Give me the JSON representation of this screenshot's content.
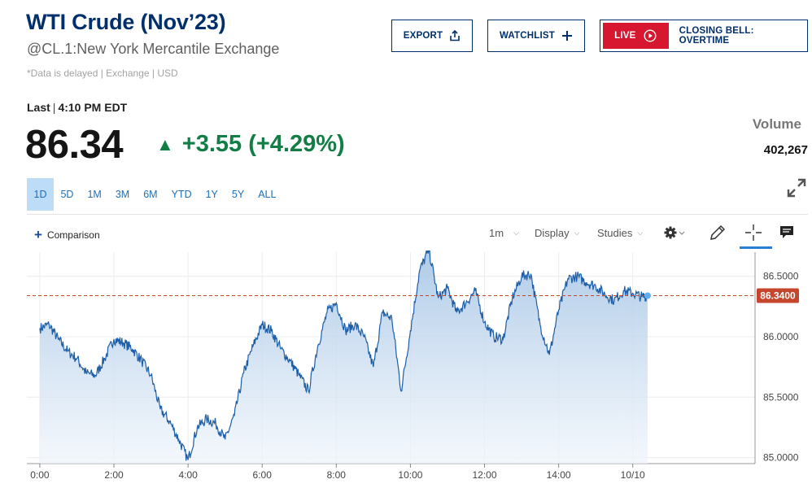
{
  "header": {
    "title": "WTI Crude (Nov’23)",
    "subtitle": "@CL.1:New York Mercantile Exchange",
    "delay_note": "*Data is delayed | Exchange | USD"
  },
  "buttons": {
    "export": "EXPORT",
    "watchlist": "WATCHLIST",
    "live": "LIVE",
    "live_program": "CLOSING BELL: OVERTIME"
  },
  "quote": {
    "last_label": "Last",
    "last_time": "4:10 PM EDT",
    "price": "86.34",
    "change": "+3.55 (+4.29%)",
    "direction": "up",
    "volume_label": "Volume",
    "volume": "402,267"
  },
  "ranges": [
    "1D",
    "5D",
    "1M",
    "3M",
    "6M",
    "YTD",
    "1Y",
    "5Y",
    "ALL"
  ],
  "active_range": "1D",
  "toolbar": {
    "comparison": "Comparison",
    "interval": "1m",
    "display": "Display",
    "studies": "Studies"
  },
  "colors": {
    "brand_navy": "#002f6c",
    "positive": "#137d46",
    "line": "#1c5ea8",
    "last_price_marker": "#c5452d",
    "live_red": "#d6172f"
  },
  "chart_data": {
    "type": "area",
    "xlabel": "",
    "ylabel": "",
    "x_ticks": [
      "0:00",
      "2:00",
      "4:00",
      "6:00",
      "8:00",
      "10:00",
      "12:00",
      "14:00",
      "10/10"
    ],
    "y_ticks": [
      "85.0000",
      "85.5000",
      "86.0000",
      "86.5000"
    ],
    "ylim": [
      84.95,
      86.7
    ],
    "x_range_hours": [
      -0.35,
      19.3
    ],
    "last_price": "86.3400",
    "last_value": 86.34,
    "grid": true,
    "series": [
      {
        "x": [
          0,
          0.25,
          0.5,
          0.75,
          1.0,
          1.25,
          1.5,
          1.75,
          2.0,
          2.25,
          2.5,
          2.75,
          3.0,
          3.25,
          3.5,
          3.75,
          4.0,
          4.25,
          4.5,
          4.75,
          5.0,
          5.25,
          5.5,
          5.75,
          6.0,
          6.25,
          6.5,
          6.75,
          7.0,
          7.25,
          7.5,
          7.75,
          8.0,
          8.25,
          8.5,
          8.75,
          9.0,
          9.25,
          9.5,
          9.75,
          10.0,
          10.25,
          10.5,
          10.75,
          11.0,
          11.25,
          11.5,
          11.75,
          12.0,
          12.25,
          12.5,
          12.75,
          13.0,
          13.25,
          13.5,
          13.75,
          14.0,
          14.25,
          14.5,
          14.75,
          15.0,
          15.25,
          15.5,
          15.75,
          16.0,
          16.25,
          16.4
        ],
        "values": [
          86.07,
          86.1,
          85.98,
          85.88,
          85.82,
          85.7,
          85.68,
          85.82,
          85.98,
          85.95,
          85.9,
          85.8,
          85.68,
          85.4,
          85.3,
          85.15,
          84.98,
          85.25,
          85.32,
          85.28,
          85.15,
          85.35,
          85.7,
          85.92,
          86.1,
          86.05,
          85.9,
          85.8,
          85.68,
          85.55,
          85.92,
          86.2,
          86.28,
          86.05,
          86.1,
          86.0,
          85.75,
          86.2,
          86.15,
          85.55,
          86.05,
          86.55,
          86.72,
          86.32,
          86.4,
          86.2,
          86.28,
          86.38,
          86.12,
          86.0,
          85.98,
          86.32,
          86.5,
          86.52,
          86.1,
          85.85,
          86.22,
          86.48,
          86.5,
          86.45,
          86.42,
          86.35,
          86.3,
          86.38,
          86.36,
          86.33,
          86.34
        ]
      }
    ]
  }
}
